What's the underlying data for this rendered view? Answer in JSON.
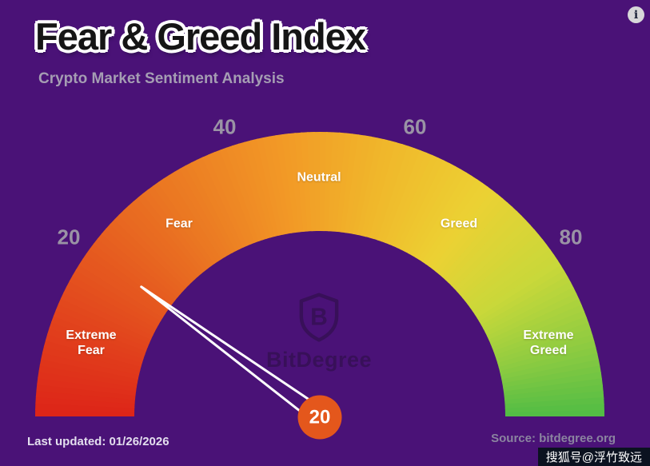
{
  "header": {
    "info_glyph": "i"
  },
  "logo": {
    "text": "BitDegree",
    "letter": "B"
  },
  "footer": {
    "last_updated": "Last updated: 01/26/2026",
    "source": "Source: bitdegree.org",
    "watermark": "搜狐号@浮竹致远"
  },
  "colors": {
    "background": "#4A1277",
    "badge": "#E4571C",
    "needle": "#FFFFFF",
    "title_text": "#151515",
    "title_outline": "#FFFFFF",
    "subtitle": "#A59DB3",
    "tick_labels": "#9A93A5",
    "segment_labels": "#FFFFFF",
    "logo": "#381059",
    "watermark_bg": "#0B1220"
  },
  "chart_data": {
    "type": "gauge",
    "title": "Fear & Greed Index",
    "subtitle": "Crypto Market Sentiment Analysis",
    "min": 0,
    "max": 100,
    "value": 20,
    "ticks": [
      20,
      40,
      60,
      80
    ],
    "segments": [
      {
        "label": "Extreme Fear",
        "from": 0,
        "to": 20
      },
      {
        "label": "Fear",
        "from": 20,
        "to": 40
      },
      {
        "label": "Neutral",
        "from": 40,
        "to": 60
      },
      {
        "label": "Greed",
        "from": 60,
        "to": 80
      },
      {
        "label": "Extreme Greed",
        "from": 80,
        "to": 100
      }
    ],
    "gradient_stops": [
      [
        0,
        "#dd2418"
      ],
      [
        15,
        "#e34d1e"
      ],
      [
        30,
        "#ea7522"
      ],
      [
        45,
        "#f29826"
      ],
      [
        58,
        "#f0b82b"
      ],
      [
        70,
        "#ecd133"
      ],
      [
        82,
        "#c8d83a"
      ],
      [
        92,
        "#8ccb41"
      ],
      [
        100,
        "#50bc45"
      ]
    ],
    "last_updated": "01/26/2026",
    "source": "bitdegree.org"
  }
}
